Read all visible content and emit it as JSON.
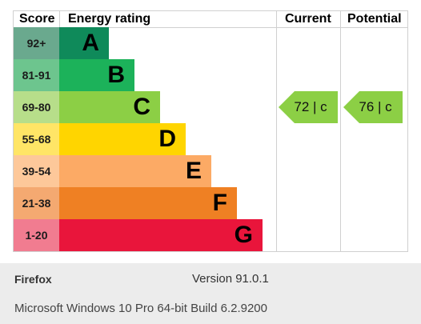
{
  "chart_data": {
    "type": "bar",
    "headers": {
      "score": "Score",
      "rating": "Energy rating",
      "current": "Current",
      "potential": "Potential"
    },
    "bands": [
      {
        "score": "92+",
        "letter": "A",
        "color": "#0f8a5a",
        "score_bg": "#6aa98e",
        "length": 1
      },
      {
        "score": "81-91",
        "letter": "B",
        "color": "#1cb25a",
        "score_bg": "#6dc58e",
        "length": 2
      },
      {
        "score": "69-80",
        "letter": "C",
        "color": "#8ccf45",
        "score_bg": "#b7de8a",
        "length": 3
      },
      {
        "score": "55-68",
        "letter": "D",
        "color": "#ffd500",
        "score_bg": "#ffe566",
        "length": 4
      },
      {
        "score": "39-54",
        "letter": "E",
        "color": "#fcaa65",
        "score_bg": "#fdc89a",
        "length": 5
      },
      {
        "score": "21-38",
        "letter": "F",
        "color": "#ef8023",
        "score_bg": "#f4a971",
        "length": 6
      },
      {
        "score": "1-20",
        "letter": "G",
        "color": "#e9153b",
        "score_bg": "#f17c90",
        "length": 7
      }
    ],
    "current": {
      "value": 72,
      "band": "c",
      "label": "72 |  c",
      "color": "#8ccf45"
    },
    "potential": {
      "value": 76,
      "band": "c",
      "label": "76 |  c",
      "color": "#8ccf45"
    }
  },
  "footer": {
    "browser": "Firefox",
    "version": "Version 91.0.1",
    "os": "Microsoft Windows 10 Pro 64-bit Build 6.2.9200"
  }
}
